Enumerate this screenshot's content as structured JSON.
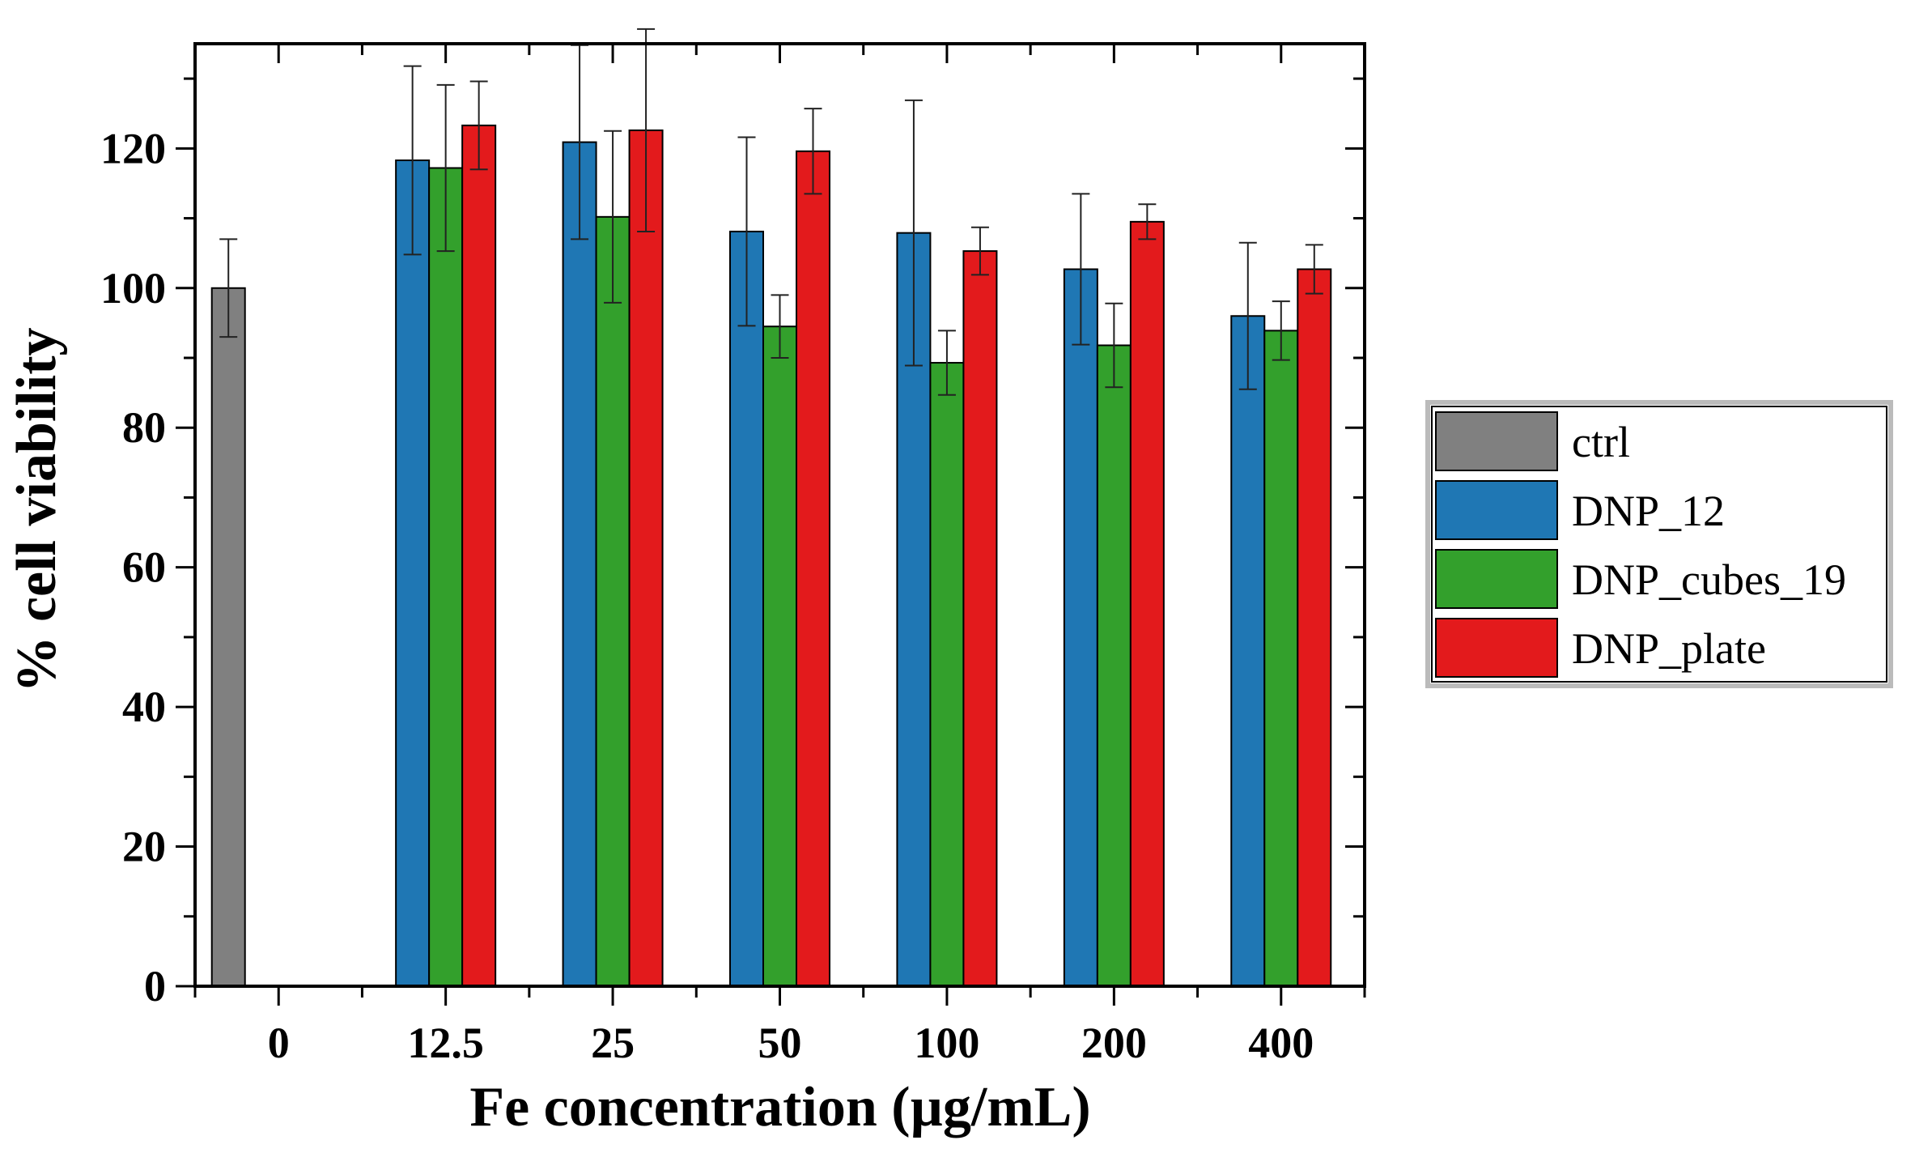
{
  "chart_data": {
    "type": "bar",
    "title": "",
    "xlabel": "Fe concentration (µg/mL)",
    "ylabel": "% cell viability",
    "ylim": [
      0,
      135
    ],
    "yticks": [
      0,
      20,
      40,
      60,
      80,
      100,
      120
    ],
    "categories": [
      "0",
      "12.5",
      "25",
      "50",
      "100",
      "200",
      "400"
    ],
    "legend_position": "right",
    "series": [
      {
        "name": "ctrl",
        "color": "#808080",
        "values": [
          100,
          null,
          null,
          null,
          null,
          null,
          null
        ],
        "errors": [
          7,
          null,
          null,
          null,
          null,
          null,
          null
        ]
      },
      {
        "name": "DNP_12",
        "color": "#1f77b4",
        "values": [
          null,
          118.3,
          120.9,
          108.1,
          107.9,
          102.7,
          96.0
        ],
        "errors": [
          null,
          13.5,
          13.9,
          13.5,
          19.0,
          10.8,
          10.5
        ]
      },
      {
        "name": "DNP_cubes_19",
        "color": "#33a02c",
        "values": [
          null,
          117.2,
          110.2,
          94.5,
          89.3,
          91.8,
          93.9
        ],
        "errors": [
          null,
          11.9,
          12.3,
          4.5,
          4.6,
          6.0,
          4.2
        ]
      },
      {
        "name": "DNP_plate",
        "color": "#e31a1c",
        "values": [
          null,
          123.3,
          122.6,
          119.6,
          105.3,
          109.5,
          102.7
        ],
        "errors": [
          null,
          6.3,
          14.5,
          6.1,
          3.4,
          2.5,
          3.5
        ]
      }
    ]
  }
}
